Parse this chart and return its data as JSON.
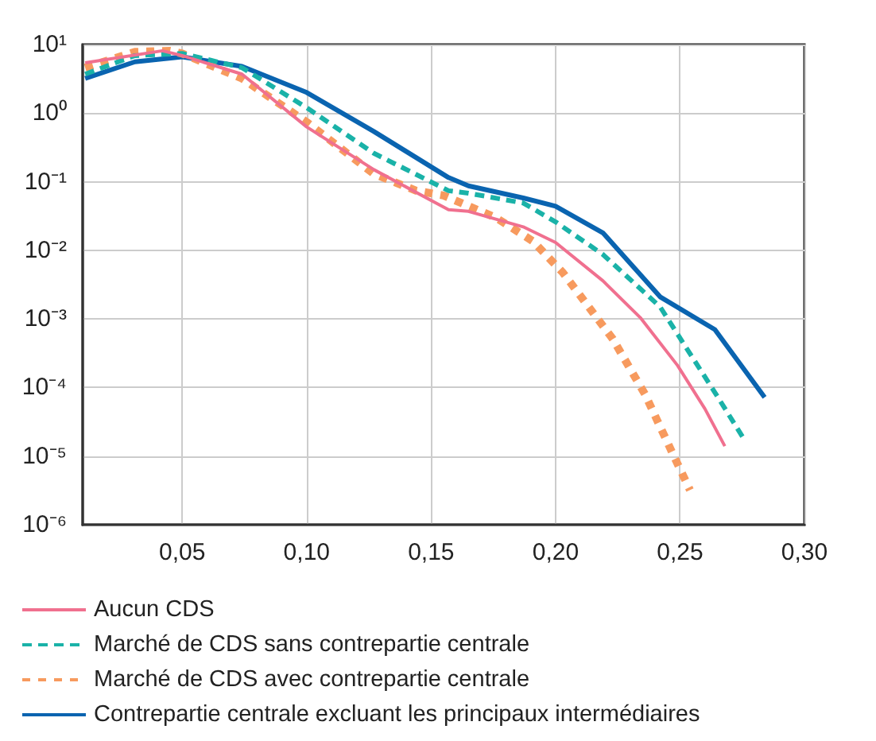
{
  "chart_data": {
    "type": "line",
    "log": "y",
    "grid": true,
    "legend": "bottom",
    "marker": "none",
    "xlim": [
      0.01,
      0.3
    ],
    "xticks": [
      {
        "value": 0.05,
        "label": "0,05"
      },
      {
        "value": 0.1,
        "label": "0,10"
      },
      {
        "value": 0.15,
        "label": "0,15"
      },
      {
        "value": 0.2,
        "label": "0,20"
      },
      {
        "value": 0.25,
        "label": "0,25"
      },
      {
        "value": 0.3,
        "label": "0,30"
      }
    ],
    "ylim": [
      1e-06,
      10
    ],
    "yticks": [
      {
        "value": 1e-06,
        "label": "10⁻⁶"
      },
      {
        "value": 1e-05,
        "label": "10⁻⁵"
      },
      {
        "value": 0.0001,
        "label": "10⁻⁴"
      },
      {
        "value": 0.001,
        "label": "10⁻³"
      },
      {
        "value": 0.01,
        "label": "10⁻²"
      },
      {
        "value": 0.1,
        "label": "10⁻¹"
      },
      {
        "value": 1,
        "label": "10⁰"
      },
      {
        "value": 10,
        "label": "10¹"
      }
    ],
    "series": [
      {
        "name": "Aucun CDS",
        "color": "#f0708f",
        "line_style": "solid",
        "x": [
          0.011,
          0.042,
          0.05,
          0.074,
          0.1,
          0.127,
          0.157,
          0.165,
          0.187,
          0.2,
          0.219,
          0.234,
          0.249,
          0.26,
          0.268
        ],
        "values": [
          5.4,
          8.1,
          6.9,
          3.7,
          0.63,
          0.15,
          0.039,
          0.037,
          0.022,
          0.013,
          0.0036,
          0.00105,
          0.00021,
          4.9e-05,
          1.4e-05
        ]
      },
      {
        "name": "Marché de CDS sans contrepartie centrale",
        "color": "#1ab2a8",
        "line_style": "dashed",
        "x": [
          0.011,
          0.031,
          0.05,
          0.074,
          0.1,
          0.127,
          0.157,
          0.165,
          0.187,
          0.2,
          0.219,
          0.242,
          0.249,
          0.264,
          0.276
        ],
        "values": [
          3.7,
          6.9,
          7.4,
          4.6,
          1.2,
          0.26,
          0.074,
          0.068,
          0.049,
          0.026,
          0.0087,
          0.0015,
          0.0006,
          8.5e-05,
          1.7e-05
        ]
      },
      {
        "name": "Marché de CDS avec contrepartie centrale",
        "color": "#f79a5e",
        "line_style": "dotted",
        "x": [
          0.011,
          0.031,
          0.045,
          0.05,
          0.074,
          0.1,
          0.127,
          0.144,
          0.155,
          0.176,
          0.191,
          0.203,
          0.208,
          0.223,
          0.236,
          0.247,
          0.254
        ],
        "values": [
          4.6,
          7.8,
          8.1,
          7.4,
          3.2,
          0.74,
          0.13,
          0.074,
          0.063,
          0.03,
          0.0135,
          0.0047,
          0.0027,
          0.00051,
          7.9e-05,
          1.1e-05,
          3.2e-06
        ]
      },
      {
        "name": "Contrepartie centrale excluant les principaux intermédiaires",
        "color": "#0a64b0",
        "line_style": "solid",
        "x": [
          0.011,
          0.031,
          0.05,
          0.074,
          0.1,
          0.127,
          0.157,
          0.165,
          0.187,
          0.2,
          0.219,
          0.242,
          0.264,
          0.284
        ],
        "values": [
          3.2,
          5.6,
          6.6,
          4.8,
          2.0,
          0.54,
          0.115,
          0.087,
          0.058,
          0.044,
          0.018,
          0.0021,
          0.0007,
          7.2e-05
        ]
      }
    ]
  }
}
